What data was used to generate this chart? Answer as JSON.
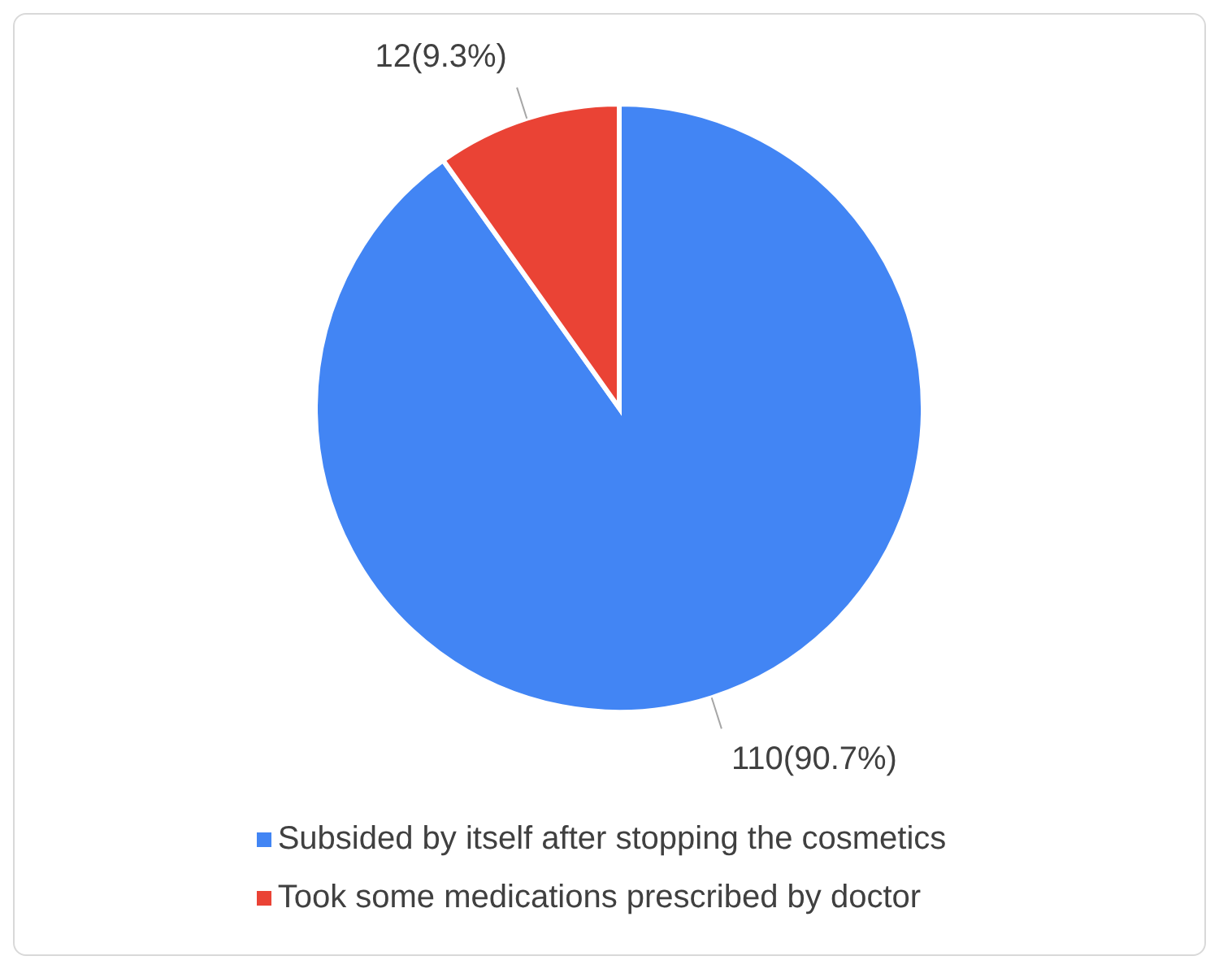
{
  "chart_data": {
    "type": "pie",
    "categories": [
      "Subsided by itself after stopping the cosmetics",
      "Took some medications prescribed by doctor"
    ],
    "values": [
      110,
      12
    ],
    "value_labels": [
      "110(90.7%)",
      "12(9.3%)"
    ],
    "colors": [
      "#4285f4",
      "#ea4335"
    ],
    "legend": "bottom"
  }
}
